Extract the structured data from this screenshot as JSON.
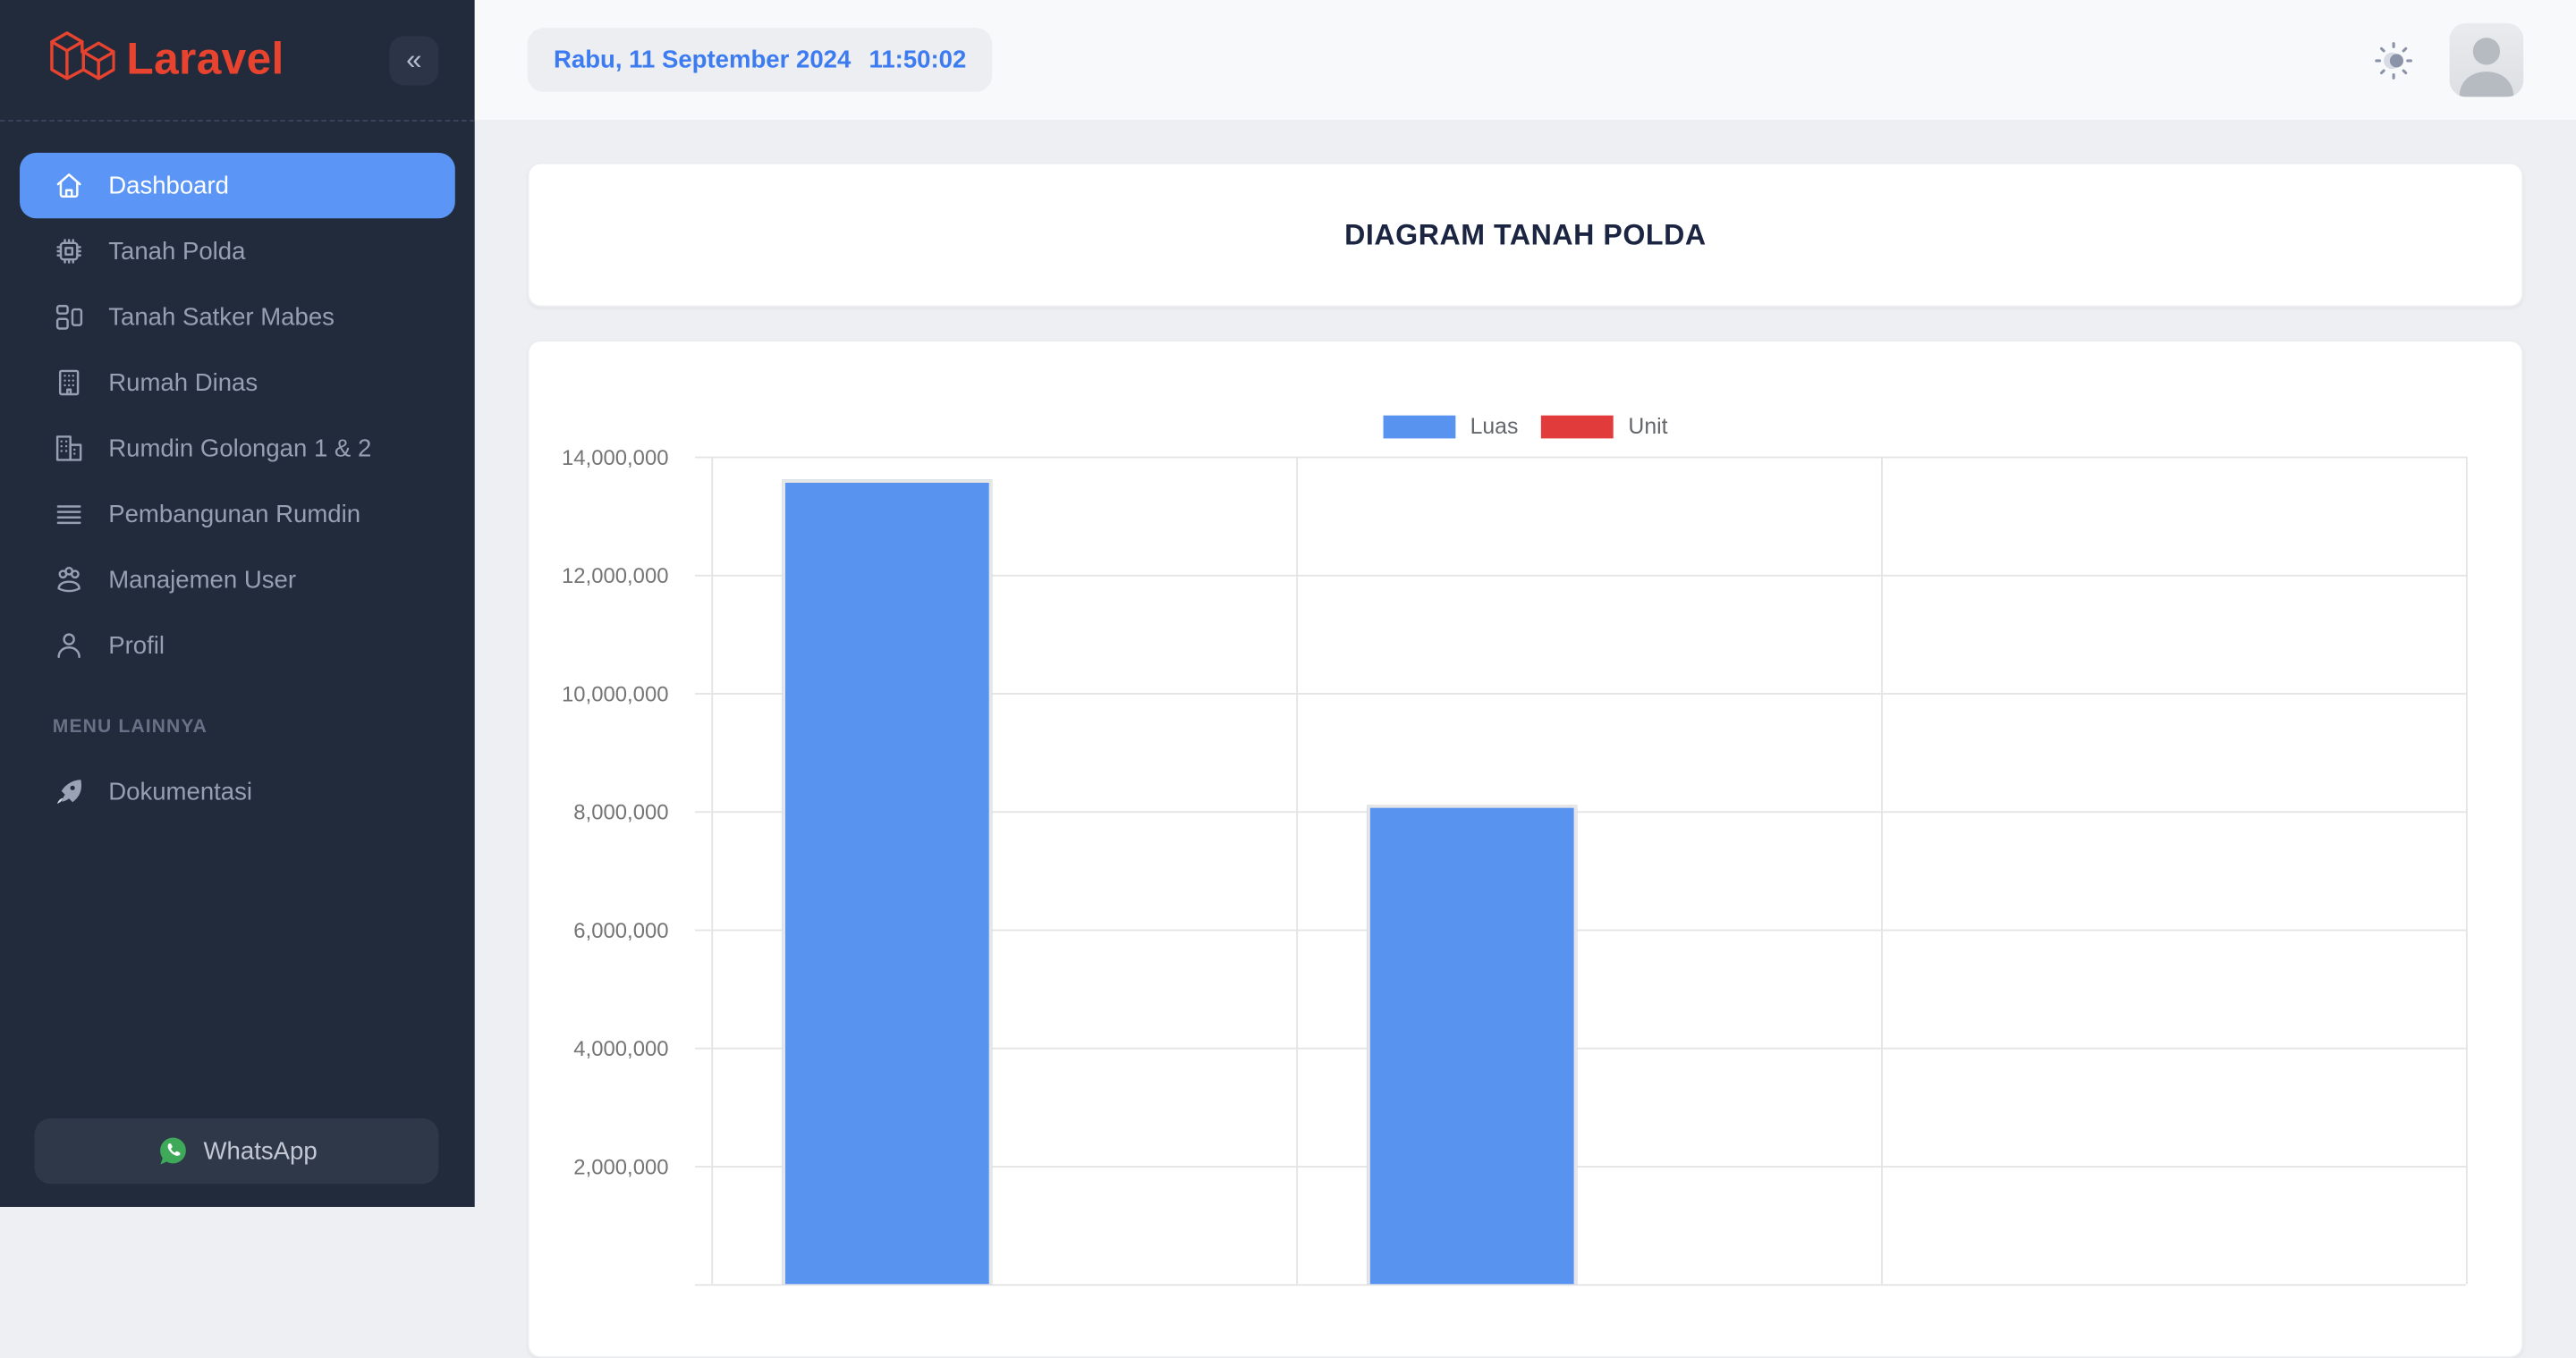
{
  "brand": {
    "name": "Laravel",
    "logo_color": "#e8432f"
  },
  "sidebar": {
    "menu": [
      {
        "label": "Dashboard",
        "icon": "home",
        "active": true
      },
      {
        "label": "Tanah Polda",
        "icon": "chip",
        "active": false
      },
      {
        "label": "Tanah Satker Mabes",
        "icon": "layout",
        "active": false
      },
      {
        "label": "Rumah Dinas",
        "icon": "building",
        "active": false
      },
      {
        "label": "Rumdin Golongan 1 & 2",
        "icon": "buildings",
        "active": false
      },
      {
        "label": "Pembangunan Rumdin",
        "icon": "lines",
        "active": false
      },
      {
        "label": "Manajemen User",
        "icon": "users",
        "active": false
      },
      {
        "label": "Profil",
        "icon": "user",
        "active": false
      }
    ],
    "section_label": "MENU LAINNYA",
    "secondary_menu": [
      {
        "label": "Dokumentasi",
        "icon": "rocket",
        "active": false
      }
    ],
    "whatsapp": {
      "label": "WhatsApp"
    }
  },
  "topbar": {
    "date": "Rabu, 11 September 2024",
    "time": "11:50:02"
  },
  "title_card": {
    "title": "DIAGRAM TANAH POLDA"
  },
  "chart_data": {
    "type": "bar",
    "title": "DIAGRAM TANAH POLDA",
    "categories": [
      "",
      "",
      ""
    ],
    "series": [
      {
        "name": "Luas",
        "color": "#5893f0",
        "values": [
          13600000,
          8100000,
          null
        ]
      },
      {
        "name": "Unit",
        "color": "#e23b3b",
        "values": [
          null,
          null,
          null
        ]
      }
    ],
    "ylim": [
      0,
      14000000
    ],
    "ytick_step": 2000000,
    "ytick_labels": [
      "2,000,000",
      "4,000,000",
      "6,000,000",
      "8,000,000",
      "10,000,000",
      "12,000,000",
      "14,000,000"
    ],
    "grid": true,
    "legend_position": "top"
  },
  "colors": {
    "sidebar_bg": "#222b3c",
    "active_item": "#5b96f6",
    "brand_red": "#e8432f",
    "bar_blue": "#5893f0",
    "bar_red": "#e23b3b",
    "date_text": "#3d7bf0"
  }
}
